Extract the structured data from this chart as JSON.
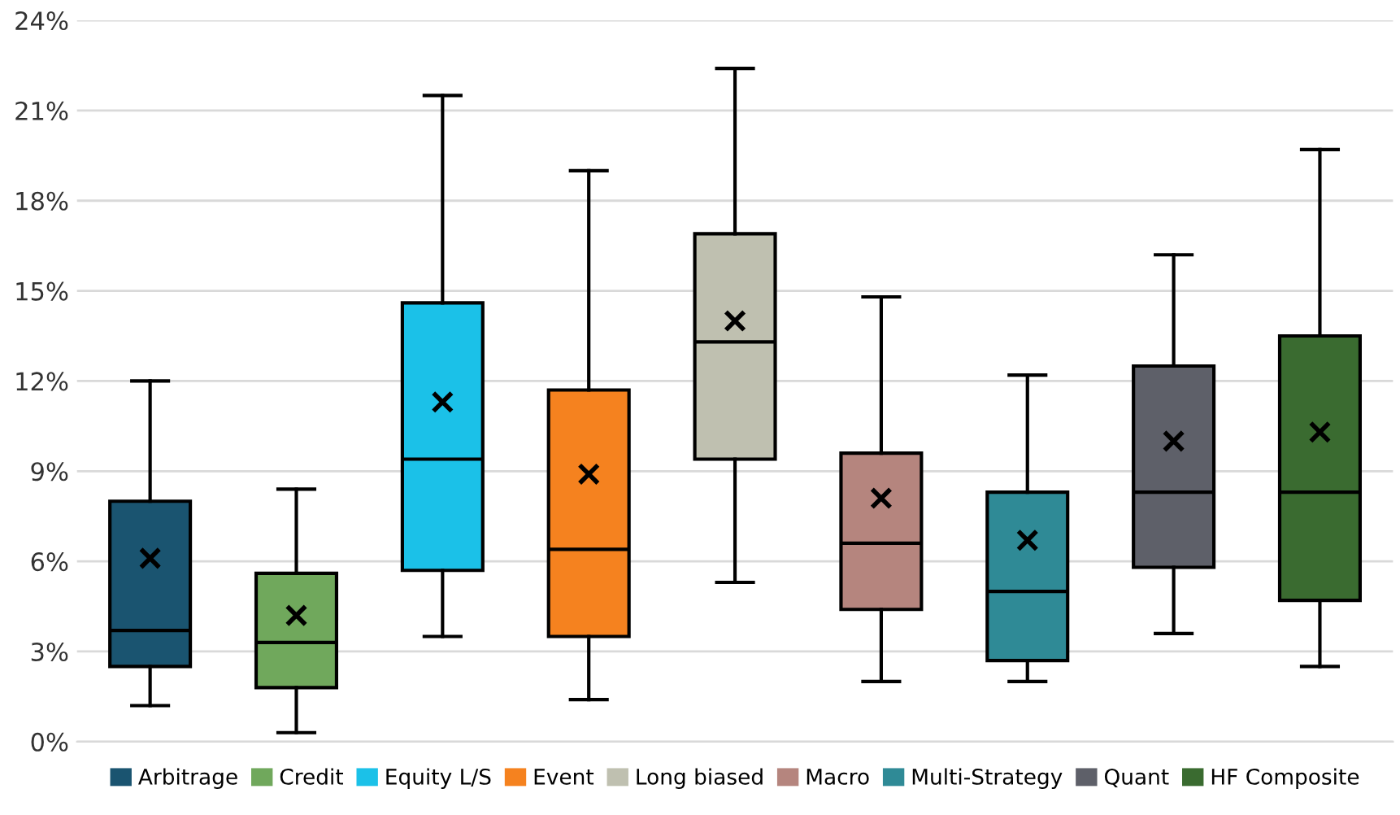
{
  "chart_data": {
    "type": "box",
    "categories": [
      null,
      null,
      null,
      null,
      null,
      null,
      null,
      null,
      null
    ],
    "series": [
      {
        "name": "Arbitrage",
        "color": "#1a5470",
        "boxes": [
          {
            "low": 1.2,
            "q1": 2.5,
            "median": 3.7,
            "q3": 8.0,
            "high": 12.0,
            "mean": 6.1
          },
          null,
          null,
          null,
          null,
          null,
          null,
          null,
          null
        ]
      },
      {
        "name": "Credit",
        "color": "#70a85c",
        "boxes": [
          null,
          {
            "low": 0.3,
            "q1": 1.8,
            "median": 3.3,
            "q3": 5.6,
            "high": 8.4,
            "mean": 4.2
          },
          null,
          null,
          null,
          null,
          null,
          null,
          null
        ]
      },
      {
        "name": "Equity L/S",
        "color": "#1bc1e8",
        "boxes": [
          null,
          null,
          {
            "low": 3.5,
            "q1": 5.7,
            "median": 9.4,
            "q3": 14.6,
            "high": 21.5,
            "mean": 11.3
          },
          null,
          null,
          null,
          null,
          null,
          null
        ]
      },
      {
        "name": "Event",
        "color": "#f5821f",
        "boxes": [
          null,
          null,
          null,
          {
            "low": 1.4,
            "q1": 3.5,
            "median": 6.4,
            "q3": 11.7,
            "high": 19.0,
            "mean": 8.9
          },
          null,
          null,
          null,
          null,
          null
        ]
      },
      {
        "name": "Long biased",
        "color": "#bfc0b0",
        "boxes": [
          null,
          null,
          null,
          null,
          {
            "low": 5.3,
            "q1": 9.4,
            "median": 13.3,
            "q3": 16.9,
            "high": 22.4,
            "mean": 14.0
          },
          null,
          null,
          null,
          null
        ]
      },
      {
        "name": "Macro",
        "color": "#b5857e",
        "boxes": [
          null,
          null,
          null,
          null,
          null,
          {
            "low": 2.0,
            "q1": 4.4,
            "median": 6.6,
            "q3": 9.6,
            "high": 14.8,
            "mean": 8.1
          },
          null,
          null,
          null
        ]
      },
      {
        "name": "Multi-Strategy",
        "color": "#2f8a96",
        "boxes": [
          null,
          null,
          null,
          null,
          null,
          null,
          {
            "low": 2.0,
            "q1": 2.7,
            "median": 5.0,
            "q3": 8.3,
            "high": 12.2,
            "mean": 6.7
          },
          null,
          null
        ]
      },
      {
        "name": "Quant",
        "color": "#5e6069",
        "boxes": [
          null,
          null,
          null,
          null,
          null,
          null,
          null,
          {
            "low": 3.6,
            "q1": 5.8,
            "median": 8.3,
            "q3": 12.5,
            "high": 16.2,
            "mean": 10.0
          },
          null
        ]
      },
      {
        "name": "HF Composite",
        "color": "#3a6b30",
        "boxes": [
          null,
          null,
          null,
          null,
          null,
          null,
          null,
          null,
          {
            "low": 2.5,
            "q1": 4.7,
            "median": 8.3,
            "q3": 13.5,
            "high": 19.7,
            "mean": 10.3
          }
        ]
      }
    ],
    "ylim": [
      0,
      24
    ],
    "yticks": [
      {
        "value": 0,
        "label": "0%"
      },
      {
        "value": 3,
        "label": "3%"
      },
      {
        "value": 6,
        "label": "6%"
      },
      {
        "value": 9,
        "label": "9%"
      },
      {
        "value": 12,
        "label": "12%"
      },
      {
        "value": 15,
        "label": "15%"
      },
      {
        "value": 18,
        "label": "18%"
      },
      {
        "value": 21,
        "label": "21%"
      },
      {
        "value": 24,
        "label": "24%"
      }
    ],
    "grid": "y",
    "legend": "bottom",
    "tick_labels": "y",
    "marker": "cross"
  }
}
